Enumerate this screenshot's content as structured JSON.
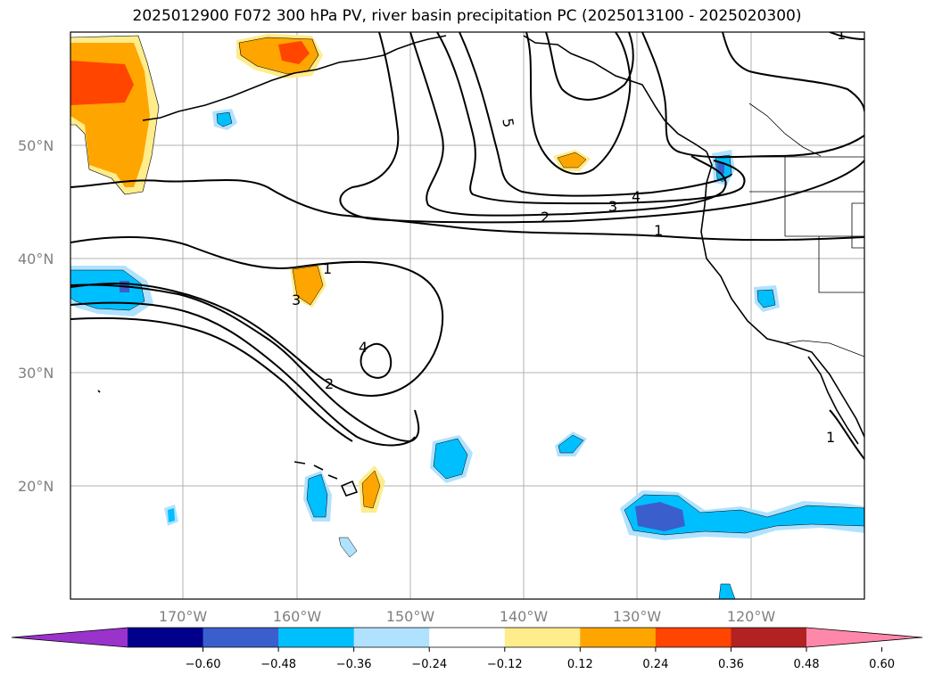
{
  "title": "2025012900 F072 300 hPa PV, river basin precipitation PC (2025013100 - 2025020300)",
  "lat_ticks": [
    "50°N",
    "40°N",
    "30°N",
    "20°N"
  ],
  "lon_ticks": [
    "170°W",
    "160°W",
    "150°W",
    "140°W",
    "130°W",
    "120°W"
  ],
  "colorbar": {
    "colors": [
      "#9933cc",
      "#00008b",
      "#3a5fcd",
      "#00bfff",
      "#b0e2ff",
      "#ffffff",
      "#ffec8b",
      "#ffa500",
      "#ff4500",
      "#b22222",
      "#ff88aa"
    ],
    "tick_labels": [
      "−0.60",
      "−0.48",
      "−0.36",
      "−0.24",
      "−0.12",
      "0.12",
      "0.24",
      "0.36",
      "0.48",
      "0.60"
    ]
  },
  "contour_labels": [
    "1",
    "5",
    "4",
    "3",
    "2",
    "1",
    "1",
    "3",
    "4",
    "2",
    "1"
  ]
}
